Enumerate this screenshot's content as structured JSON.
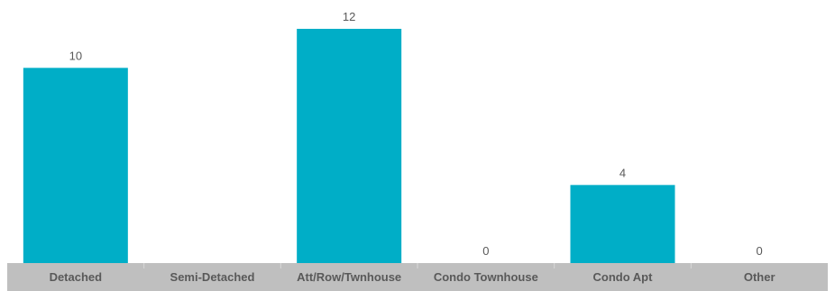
{
  "chart_data": {
    "type": "bar",
    "categories": [
      "Detached",
      "Semi-Detached",
      "Att/Row/Twnhouse",
      "Condo Townhouse",
      "Condo Apt",
      "Other"
    ],
    "values": [
      10,
      null,
      12,
      0,
      4,
      0
    ],
    "data_labels": [
      "10",
      "",
      "12",
      "0",
      "4",
      "0"
    ],
    "ylim": [
      0,
      12
    ],
    "bar_color": "#00AEC7",
    "axis_band_color": "#BFBFBF",
    "grid": false,
    "legend": "none"
  }
}
